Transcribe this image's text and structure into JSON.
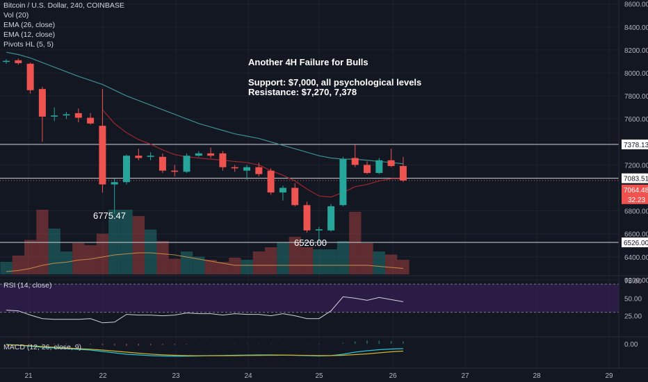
{
  "header": {
    "symbol_line": "Bitcoin / U.S. Dollar, 240, COINBASE",
    "indicators": [
      "Vol (20)",
      "EMA (26, close)",
      "EMA (12, close)",
      "Pivots HL (5, 5)"
    ]
  },
  "annotation": {
    "title": "Another 4H Failure for Bulls",
    "support": "Support: $7,000, all psychological levels",
    "resistance": "Resistance: $7,270, 7,378"
  },
  "price_labels": {
    "low_1": "6775.47",
    "low_2": "6526.00"
  },
  "rsi_panel": {
    "label": "RSI (14, close)"
  },
  "macd_panel": {
    "label": "MACD (12, 26, close, 9)"
  },
  "colors": {
    "background": "#131722",
    "up": "#26a69a",
    "down": "#ef5350",
    "ema26": "#3d8e91",
    "ema12": "#a3262b",
    "rsi_line": "#d1d4dc",
    "rsi_band": "#3b1f5e",
    "macd": "#26c6da",
    "signal": "#d4b32a",
    "hline": "#d1d4dc",
    "axis_text": "#b2b5be"
  },
  "chart_data": [
    {
      "type": "candlestick",
      "title": "Bitcoin / U.S. Dollar, 240, COINBASE",
      "x_tick_labels": [
        "21",
        "22",
        "23",
        "24",
        "25",
        "26",
        "27",
        "28",
        "29"
      ],
      "y_tick_labels": [
        "8600.00",
        "8400.00",
        "8200.00",
        "8000.00",
        "7800.00",
        "7600.00",
        "7200.00",
        "6800.00",
        "6600.00",
        "6400.00",
        "6200.00"
      ],
      "ylim": [
        6150,
        8680
      ],
      "horizontal_levels": [
        {
          "value": 7378.13,
          "label": "7378.13"
        },
        {
          "value": 7083.51,
          "label": "7083.51"
        },
        {
          "value": 6526.0,
          "label": "6526.00"
        }
      ],
      "last_price": {
        "value": 7064.48,
        "label": "7064.48",
        "change_label": "32.23"
      },
      "candles": [
        {
          "o": 8100,
          "h": 8120,
          "l": 8080,
          "c": 8105
        },
        {
          "o": 8110,
          "h": 8125,
          "l": 8070,
          "c": 8085
        },
        {
          "o": 8080,
          "h": 8090,
          "l": 7820,
          "c": 7850
        },
        {
          "o": 7860,
          "h": 7880,
          "l": 7400,
          "c": 7620
        },
        {
          "o": 7620,
          "h": 7700,
          "l": 7580,
          "c": 7630
        },
        {
          "o": 7630,
          "h": 7660,
          "l": 7600,
          "c": 7640
        },
        {
          "o": 7650,
          "h": 7690,
          "l": 7570,
          "c": 7610
        },
        {
          "o": 7610,
          "h": 7650,
          "l": 7550,
          "c": 7560
        },
        {
          "o": 7540,
          "h": 7860,
          "l": 6960,
          "c": 7030
        },
        {
          "o": 7030,
          "h": 7080,
          "l": 6775,
          "c": 7050
        },
        {
          "o": 7050,
          "h": 7290,
          "l": 7030,
          "c": 7280
        },
        {
          "o": 7280,
          "h": 7340,
          "l": 7240,
          "c": 7260
        },
        {
          "o": 7270,
          "h": 7310,
          "l": 7240,
          "c": 7280
        },
        {
          "o": 7270,
          "h": 7300,
          "l": 7130,
          "c": 7150
        },
        {
          "o": 7150,
          "h": 7200,
          "l": 7100,
          "c": 7140
        },
        {
          "o": 7140,
          "h": 7300,
          "l": 7130,
          "c": 7280
        },
        {
          "o": 7280,
          "h": 7320,
          "l": 7270,
          "c": 7300
        },
        {
          "o": 7300,
          "h": 7350,
          "l": 7260,
          "c": 7280
        },
        {
          "o": 7300,
          "h": 7320,
          "l": 7150,
          "c": 7180
        },
        {
          "o": 7180,
          "h": 7200,
          "l": 7140,
          "c": 7170
        },
        {
          "o": 7150,
          "h": 7200,
          "l": 7070,
          "c": 7180
        },
        {
          "o": 7180,
          "h": 7220,
          "l": 7100,
          "c": 7120
        },
        {
          "o": 7150,
          "h": 7170,
          "l": 6940,
          "c": 6960
        },
        {
          "o": 6960,
          "h": 7020,
          "l": 6890,
          "c": 7000
        },
        {
          "o": 7000,
          "h": 7040,
          "l": 6840,
          "c": 6850
        },
        {
          "o": 6850,
          "h": 6880,
          "l": 6610,
          "c": 6630
        },
        {
          "o": 6630,
          "h": 6660,
          "l": 6526,
          "c": 6640
        },
        {
          "o": 6630,
          "h": 6860,
          "l": 6620,
          "c": 6840
        },
        {
          "o": 6850,
          "h": 7270,
          "l": 6840,
          "c": 7250
        },
        {
          "o": 7260,
          "h": 7378,
          "l": 7180,
          "c": 7200
        },
        {
          "o": 7200,
          "h": 7230,
          "l": 7120,
          "c": 7130
        },
        {
          "o": 7130,
          "h": 7260,
          "l": 7120,
          "c": 7240
        },
        {
          "o": 7240,
          "h": 7340,
          "l": 7180,
          "c": 7190
        },
        {
          "o": 7190,
          "h": 7270,
          "l": 7050,
          "c": 7064
        }
      ],
      "ema26": [
        8180,
        8160,
        8130,
        8090,
        8050,
        8010,
        7970,
        7935,
        7900,
        7850,
        7800,
        7760,
        7720,
        7680,
        7640,
        7600,
        7560,
        7530,
        7500,
        7470,
        7450,
        7430,
        7400,
        7370,
        7340,
        7310,
        7280,
        7260,
        7250,
        7250,
        7240,
        7230,
        7220,
        7210
      ],
      "ema12": [
        null,
        null,
        null,
        null,
        null,
        null,
        null,
        null,
        7680,
        7560,
        7480,
        7420,
        7380,
        7330,
        7290,
        7270,
        7260,
        7250,
        7240,
        7230,
        7220,
        7200,
        7150,
        7110,
        7060,
        6990,
        6930,
        6920,
        6960,
        7010,
        7030,
        7060,
        7080,
        7080
      ],
      "volume": [
        0.12,
        0.18,
        0.33,
        0.62,
        0.44,
        0.22,
        0.3,
        0.28,
        0.39,
        0.62,
        0.62,
        0.56,
        0.43,
        0.32,
        0.15,
        0.22,
        0.17,
        0.14,
        0.12,
        0.16,
        0.14,
        0.22,
        0.26,
        0.31,
        0.36,
        0.26,
        0.24,
        0.24,
        0.32,
        0.6,
        0.3,
        0.22,
        0.19,
        0.14
      ]
    },
    {
      "type": "line",
      "title": "RSI (14, close)",
      "y_tick_labels": [
        "75.00",
        "50.00",
        "25.00"
      ],
      "ylim": [
        0,
        75
      ],
      "band": [
        30,
        70
      ],
      "values": [
        33,
        32,
        26,
        21,
        20,
        20,
        20,
        21,
        15,
        16,
        27,
        26,
        26,
        25,
        26,
        29,
        28,
        28,
        26,
        28,
        27,
        27,
        25,
        28,
        25,
        21,
        21,
        32,
        52,
        50,
        47,
        51,
        48,
        45
      ]
    },
    {
      "type": "line",
      "title": "MACD (12, 26, close, 9)",
      "y_tick_labels": [
        "0.00"
      ],
      "series": [
        {
          "values": [
            -10,
            -20,
            -35,
            -50,
            -60,
            -70,
            -80,
            -90,
            -110,
            -130,
            -150,
            -160,
            -170,
            -175,
            -180,
            -178,
            -175,
            -170,
            -168,
            -165,
            -162,
            -160,
            -160,
            -162,
            -165,
            -170,
            -175,
            -170,
            -150,
            -120,
            -100,
            -85,
            -75,
            -70
          ]
        },
        {
          "values": [
            -15,
            -20,
            -28,
            -40,
            -50,
            -60,
            -70,
            -78,
            -90,
            -105,
            -120,
            -135,
            -148,
            -158,
            -165,
            -170,
            -172,
            -172,
            -171,
            -170,
            -168,
            -166,
            -165,
            -164,
            -165,
            -167,
            -170,
            -170,
            -165,
            -155,
            -145,
            -130,
            -115,
            -105
          ]
        }
      ]
    }
  ]
}
